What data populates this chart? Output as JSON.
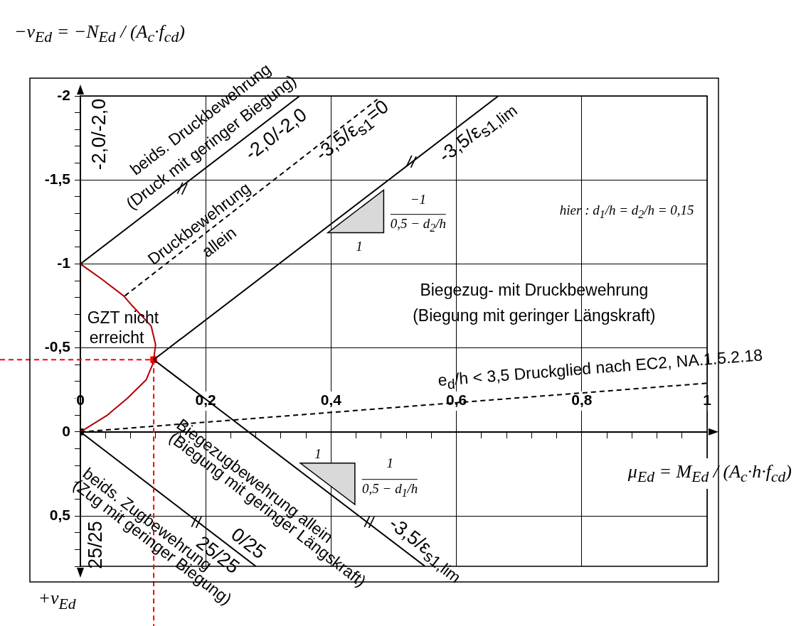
{
  "chart_data": {
    "type": "line",
    "ylabel": "−ν$_{Ed}$ = −N$_{Ed}$ / (A$_{c}$·f$_{cd}$)",
    "xlabel": "μ$_{Ed}$ = M$_{Ed}$ / (A$_{c}$·h·f$_{cd}$)",
    "xlim": [
      0,
      1
    ],
    "ylim": [
      0.8,
      -2
    ],
    "xticks": [
      0,
      {
        "value": 0.04,
        "label": null
      },
      {
        "value": 0.08,
        "label": null
      },
      {
        "value": 0.12,
        "label": null
      },
      {
        "value": 0.16,
        "label": null
      },
      {
        "value": 0.2,
        "label": "0,2"
      },
      {
        "value": 0.24,
        "label": null
      },
      {
        "value": 0.28,
        "label": null
      },
      {
        "value": 0.32,
        "label": null
      },
      {
        "value": 0.36,
        "label": null
      },
      {
        "value": 0.4,
        "label": "0,4"
      },
      {
        "value": 0.44,
        "label": null
      },
      {
        "value": 0.48,
        "label": null
      },
      {
        "value": 0.52,
        "label": null
      },
      {
        "value": 0.56,
        "label": null
      },
      {
        "value": 0.6,
        "label": "0,6"
      },
      {
        "value": 0.64,
        "label": null
      },
      {
        "value": 0.68,
        "label": null
      },
      {
        "value": 0.72,
        "label": null
      },
      {
        "value": 0.76,
        "label": null
      },
      {
        "value": 0.8,
        "label": "0,8"
      },
      {
        "value": 0.84,
        "label": null
      },
      {
        "value": 0.88,
        "label": null
      },
      {
        "value": 0.92,
        "label": null
      },
      {
        "value": 0.96,
        "label": null
      },
      1
    ],
    "yticks": [
      -2,
      {
        "value": -1.9,
        "label": null
      },
      {
        "value": -1.8,
        "label": null
      },
      {
        "value": -1.7,
        "label": null
      },
      {
        "value": -1.6,
        "label": null
      },
      {
        "value": -1.5,
        "label": "-1,5"
      },
      {
        "value": -1.4,
        "label": null
      },
      {
        "value": -1.3,
        "label": null
      },
      {
        "value": -1.2,
        "label": null
      },
      {
        "value": -1.1,
        "label": null
      },
      -1,
      {
        "value": -0.9,
        "label": null
      },
      {
        "value": -0.8,
        "label": null
      },
      {
        "value": -0.7,
        "label": null
      },
      {
        "value": -0.6,
        "label": null
      },
      {
        "value": -0.5,
        "label": "-0,5"
      },
      {
        "value": -0.4,
        "label": null
      },
      {
        "value": -0.3,
        "label": null
      },
      {
        "value": -0.2,
        "label": null
      },
      {
        "value": -0.1,
        "label": null
      },
      0,
      {
        "value": 0.1,
        "label": null
      },
      {
        "value": 0.2,
        "label": null
      },
      {
        "value": 0.3,
        "label": null
      },
      {
        "value": 0.4,
        "label": null
      },
      {
        "value": 0.5,
        "label": "0,5"
      },
      {
        "value": 0.6,
        "label": null
      },
      {
        "value": 0.7,
        "label": null
      },
      {
        "value": 0.8,
        "label": null
      }
    ],
    "grid": true,
    "series": [
      {
        "type": "line",
        "color": "#000000",
        "marker": "none",
        "line_style": "solid",
        "x": [
          0,
          0.35
        ],
        "values": [
          -1,
          -2
        ]
      },
      {
        "type": "line",
        "color": "#000000",
        "marker": "none",
        "line_style": "solid",
        "x": [
          0.117,
          0.667
        ],
        "values": [
          -0.43,
          -2
        ]
      },
      {
        "type": "line",
        "color": "#000000",
        "marker": "none",
        "line_style": "dashed",
        "x": [
          0.071,
          0.474
        ],
        "values": [
          -0.81,
          -1.98
        ]
      },
      {
        "type": "line",
        "color": "#000000",
        "marker": "none",
        "line_style": "solid",
        "x": [
          0,
          0.28
        ],
        "values": [
          0,
          0.8
        ]
      },
      {
        "type": "line",
        "color": "#000000",
        "marker": "none",
        "line_style": "solid",
        "x": [
          0.117,
          0.55
        ],
        "values": [
          -0.43,
          0.8
        ]
      },
      {
        "type": "line",
        "color": "#000000",
        "marker": "none",
        "line_style": "dashed",
        "x": [
          0,
          1
        ],
        "values": [
          0,
          -0.29
        ]
      },
      {
        "type": "line",
        "color": "#b00000",
        "marker": "none",
        "line_style": "solid",
        "x": [
          0,
          0.034,
          0.069,
          0.083,
          0.113,
          0.12,
          0.117,
          0.115,
          0.105,
          0.075,
          0.042,
          0
        ],
        "values": [
          -1,
          -0.91,
          -0.81,
          -0.75,
          -0.63,
          -0.52,
          -0.43,
          -0.4,
          -0.31,
          -0.2,
          -0.097,
          0
        ]
      },
      {
        "type": "scatter",
        "color": "#ff0000",
        "marker": "square",
        "x": [
          0.117
        ],
        "values": [
          -0.43
        ]
      },
      {
        "type": "scatter",
        "color": "#000000",
        "marker": "square",
        "x": [
          0
        ],
        "values": [
          0
        ]
      }
    ],
    "ref_lines": [
      {
        "axis": "x",
        "value": 0.117,
        "color": "#ff0000",
        "line_style": "dashed"
      },
      {
        "axis": "y",
        "value": -0.43,
        "color": "#ff0000",
        "line_style": "dashed"
      }
    ],
    "annotations": [
      "-2,0/-2,0",
      "beids. Druckbewehrung",
      "(Druck mit geringer  Biegung)",
      "//",
      "-2,0/-2,0",
      "Druckbewehrung",
      "allein",
      "-3,5/ε$_{s1}$=0",
      "//",
      "-3,5/ε$_{s1,lim}$",
      "1",
      "−1",
      "0,5 − d$_{2}$/h",
      "hier :  d$_{1}$/h = d$_{2}$/h = 0,15",
      "Biegezug- mit Druckbewehrung",
      "(Biegung mit geringer Längskraft)",
      "GZT nicht",
      "erreicht",
      "e$_{d}$/h < 3,5  Druckglied nach EC2, NA.1.5.2.18",
      "Biegezugbewehrung allein",
      "(Biegung mit geringer Längskraft)",
      "1",
      "1",
      "0,5 − d$_{1}$/h",
      "//",
      "//",
      "-3,5/ε$_{s1,lim}$",
      "0/25",
      "25/25",
      "beids. Zugbewehrung",
      "(Zug mit geringer Biegung)",
      "25/25",
      "+ν$_{Ed}$"
    ]
  }
}
